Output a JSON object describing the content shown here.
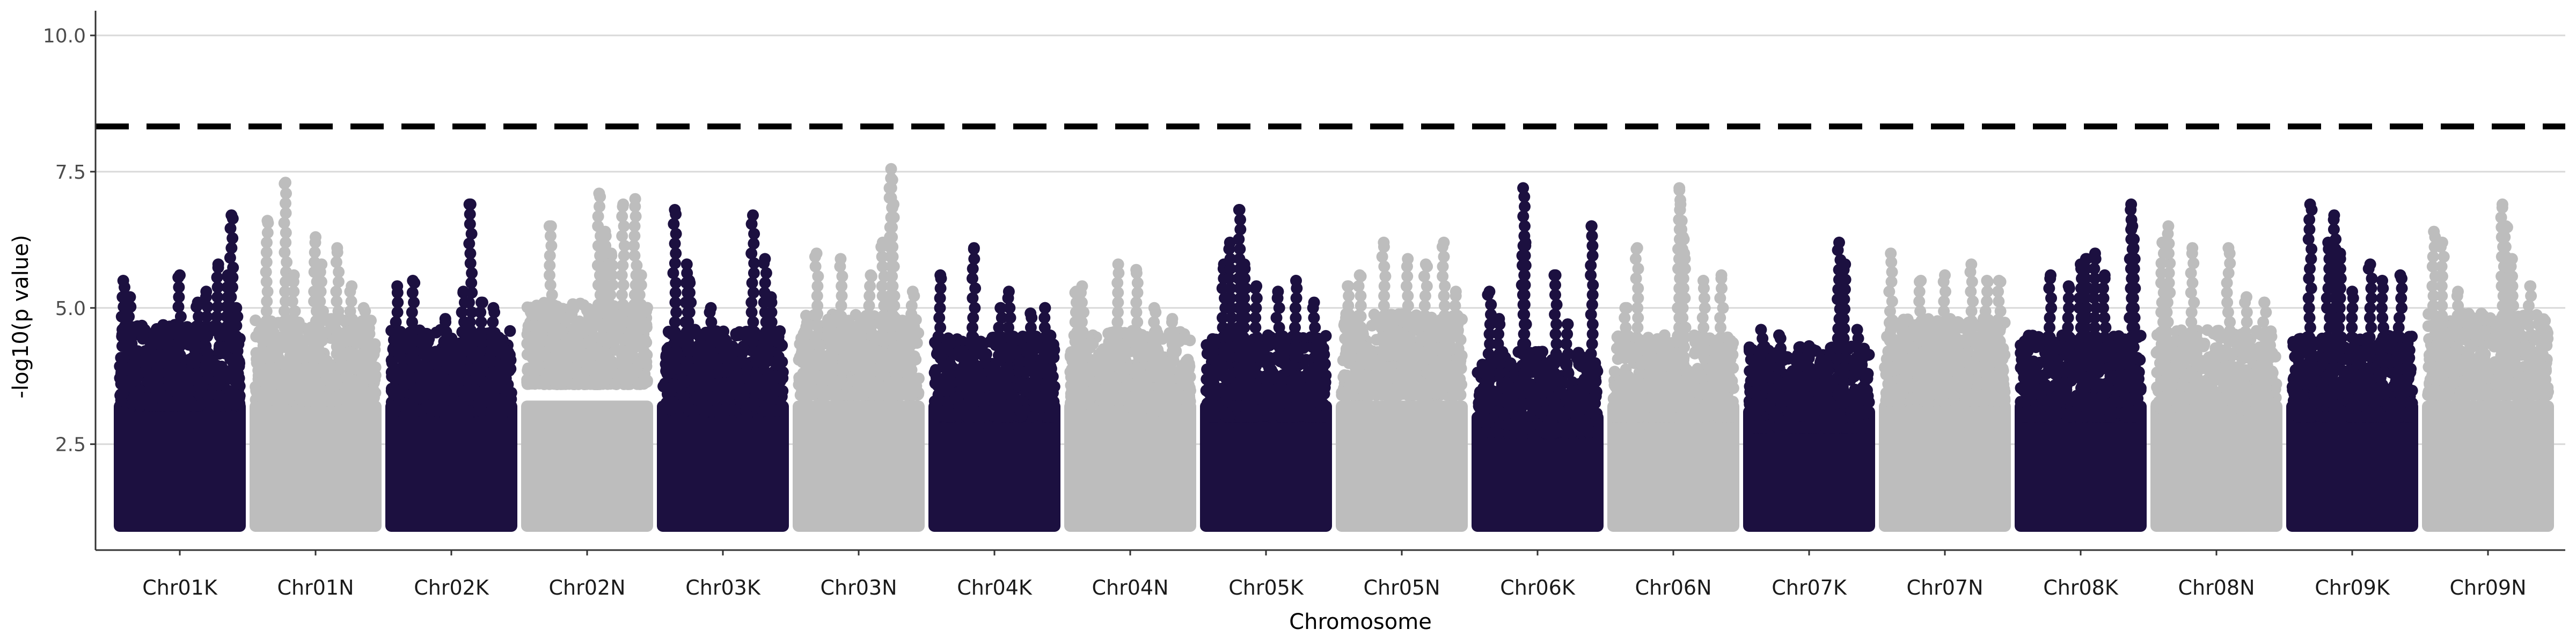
{
  "chart_data": {
    "type": "scatter",
    "title": "",
    "xlabel": "Chromosome",
    "ylabel": "-log10(p value)",
    "ylim": [
      0.6,
      10.4
    ],
    "yticks": [
      "2.5",
      "5.0",
      "7.5",
      "10.0"
    ],
    "grid": "horizontal major lines",
    "legend": "none",
    "threshold": 8.33,
    "colors": {
      "K": "#1c1040",
      "N": "#bdbdbd",
      "threshold": "#000000",
      "grid": "#d9d9d9",
      "axis": "#333333"
    },
    "chromosomes": [
      {
        "name": "Chr01K",
        "group": "K",
        "bulk_min": 1.0,
        "bulk_max": 4.5,
        "peaks": [
          [
            0.03,
            5.5
          ],
          [
            0.08,
            5.2
          ],
          [
            0.5,
            5.6
          ],
          [
            0.65,
            5.1
          ],
          [
            0.72,
            5.3
          ],
          [
            0.82,
            5.8
          ],
          [
            0.9,
            5.6
          ],
          [
            0.93,
            6.7
          ],
          [
            0.97,
            5.0
          ]
        ]
      },
      {
        "name": "Chr01N",
        "group": "N",
        "bulk_min": 1.0,
        "bulk_max": 4.6,
        "peaks": [
          [
            0.1,
            6.6
          ],
          [
            0.25,
            7.3
          ],
          [
            0.32,
            5.6
          ],
          [
            0.5,
            6.3
          ],
          [
            0.55,
            5.8
          ],
          [
            0.68,
            6.1
          ],
          [
            0.8,
            5.4
          ],
          [
            0.9,
            5.0
          ]
        ]
      },
      {
        "name": "Chr02K",
        "group": "K",
        "bulk_min": 1.0,
        "bulk_max": 4.4,
        "peaks": [
          [
            0.05,
            5.4
          ],
          [
            0.18,
            5.5
          ],
          [
            0.45,
            4.8
          ],
          [
            0.6,
            5.3
          ],
          [
            0.66,
            6.9
          ],
          [
            0.75,
            5.1
          ],
          [
            0.85,
            5.0
          ]
        ]
      },
      {
        "name": "Chr02N",
        "group": "N",
        "bulk_min": 1.0,
        "bulk_max": 4.9,
        "peaks": [
          [
            0.2,
            6.5
          ],
          [
            0.6,
            7.1
          ],
          [
            0.65,
            6.4
          ],
          [
            0.7,
            6.0
          ],
          [
            0.8,
            6.9
          ],
          [
            0.9,
            7.0
          ],
          [
            0.95,
            5.6
          ]
        ]
      },
      {
        "name": "Chr03K",
        "group": "K",
        "bulk_min": 1.0,
        "bulk_max": 4.4,
        "peaks": [
          [
            0.1,
            6.8
          ],
          [
            0.2,
            5.8
          ],
          [
            0.22,
            5.5
          ],
          [
            0.4,
            5.0
          ],
          [
            0.75,
            6.7
          ],
          [
            0.85,
            5.9
          ],
          [
            0.9,
            5.2
          ]
        ]
      },
      {
        "name": "Chr03N",
        "group": "N",
        "bulk_min": 1.0,
        "bulk_max": 4.7,
        "peaks": [
          [
            0.15,
            6.0
          ],
          [
            0.35,
            5.9
          ],
          [
            0.6,
            5.6
          ],
          [
            0.7,
            6.2
          ],
          [
            0.77,
            7.55
          ],
          [
            0.78,
            7.35
          ],
          [
            0.79,
            6.9
          ],
          [
            0.95,
            5.3
          ]
        ]
      },
      {
        "name": "Chr04K",
        "group": "K",
        "bulk_min": 1.0,
        "bulk_max": 4.3,
        "peaks": [
          [
            0.05,
            5.6
          ],
          [
            0.33,
            6.1
          ],
          [
            0.55,
            5.0
          ],
          [
            0.62,
            5.3
          ],
          [
            0.8,
            4.9
          ],
          [
            0.92,
            5.0
          ]
        ]
      },
      {
        "name": "Chr04N",
        "group": "N",
        "bulk_min": 1.0,
        "bulk_max": 4.4,
        "peaks": [
          [
            0.05,
            5.3
          ],
          [
            0.1,
            5.4
          ],
          [
            0.4,
            5.8
          ],
          [
            0.55,
            5.7
          ],
          [
            0.7,
            5.0
          ],
          [
            0.85,
            4.8
          ]
        ]
      },
      {
        "name": "Chr05K",
        "group": "K",
        "bulk_min": 1.0,
        "bulk_max": 4.3,
        "peaks": [
          [
            0.15,
            5.8
          ],
          [
            0.2,
            6.2
          ],
          [
            0.28,
            6.8
          ],
          [
            0.32,
            5.8
          ],
          [
            0.42,
            5.4
          ],
          [
            0.6,
            5.3
          ],
          [
            0.75,
            5.5
          ],
          [
            0.9,
            5.1
          ]
        ]
      },
      {
        "name": "Chr05N",
        "group": "N",
        "bulk_min": 1.0,
        "bulk_max": 4.7,
        "peaks": [
          [
            0.05,
            5.4
          ],
          [
            0.15,
            5.6
          ],
          [
            0.35,
            6.2
          ],
          [
            0.55,
            5.9
          ],
          [
            0.7,
            5.8
          ],
          [
            0.85,
            6.2
          ],
          [
            0.95,
            5.3
          ]
        ]
      },
      {
        "name": "Chr06K",
        "group": "K",
        "bulk_min": 1.0,
        "bulk_max": 4.0,
        "peaks": [
          [
            0.1,
            5.3
          ],
          [
            0.18,
            4.8
          ],
          [
            0.38,
            7.2
          ],
          [
            0.4,
            6.2
          ],
          [
            0.65,
            5.6
          ],
          [
            0.75,
            4.7
          ],
          [
            0.95,
            6.5
          ]
        ]
      },
      {
        "name": "Chr06N",
        "group": "N",
        "bulk_min": 1.0,
        "bulk_max": 4.3,
        "peaks": [
          [
            0.1,
            5.0
          ],
          [
            0.2,
            6.1
          ],
          [
            0.55,
            7.2
          ],
          [
            0.56,
            6.9
          ],
          [
            0.57,
            6.6
          ],
          [
            0.58,
            6.3
          ],
          [
            0.59,
            6.0
          ],
          [
            0.75,
            5.5
          ],
          [
            0.9,
            5.6
          ]
        ]
      },
      {
        "name": "Chr07K",
        "group": "K",
        "bulk_min": 1.0,
        "bulk_max": 4.1,
        "peaks": [
          [
            0.1,
            4.6
          ],
          [
            0.25,
            4.5
          ],
          [
            0.5,
            4.3
          ],
          [
            0.75,
            6.2
          ],
          [
            0.8,
            5.8
          ],
          [
            0.9,
            4.6
          ]
        ]
      },
      {
        "name": "Chr07N",
        "group": "N",
        "bulk_min": 1.0,
        "bulk_max": 4.6,
        "peaks": [
          [
            0.05,
            6.0
          ],
          [
            0.3,
            5.5
          ],
          [
            0.5,
            5.6
          ],
          [
            0.72,
            5.8
          ],
          [
            0.85,
            5.5
          ],
          [
            0.95,
            5.5
          ]
        ]
      },
      {
        "name": "Chr08K",
        "group": "K",
        "bulk_min": 1.0,
        "bulk_max": 4.3,
        "peaks": [
          [
            0.25,
            5.6
          ],
          [
            0.4,
            5.4
          ],
          [
            0.5,
            5.8
          ],
          [
            0.55,
            5.9
          ],
          [
            0.62,
            6.0
          ],
          [
            0.7,
            5.6
          ],
          [
            0.92,
            6.9
          ],
          [
            0.93,
            6.5
          ],
          [
            0.94,
            6.1
          ]
        ]
      },
      {
        "name": "Chr08N",
        "group": "N",
        "bulk_min": 1.0,
        "bulk_max": 4.4,
        "peaks": [
          [
            0.05,
            6.2
          ],
          [
            0.1,
            6.5
          ],
          [
            0.3,
            6.1
          ],
          [
            0.6,
            6.1
          ],
          [
            0.75,
            5.2
          ],
          [
            0.9,
            5.1
          ]
        ]
      },
      {
        "name": "Chr09K",
        "group": "K",
        "bulk_min": 1.0,
        "bulk_max": 4.3,
        "peaks": [
          [
            0.15,
            6.9
          ],
          [
            0.3,
            6.2
          ],
          [
            0.35,
            6.7
          ],
          [
            0.4,
            6.0
          ],
          [
            0.5,
            5.3
          ],
          [
            0.65,
            5.8
          ],
          [
            0.75,
            5.5
          ],
          [
            0.9,
            5.6
          ]
        ]
      },
      {
        "name": "Chr09N",
        "group": "N",
        "bulk_min": 1.0,
        "bulk_max": 4.7,
        "peaks": [
          [
            0.05,
            6.4
          ],
          [
            0.12,
            6.2
          ],
          [
            0.25,
            5.3
          ],
          [
            0.62,
            6.9
          ],
          [
            0.65,
            6.5
          ],
          [
            0.7,
            5.9
          ],
          [
            0.85,
            5.4
          ]
        ]
      }
    ]
  }
}
